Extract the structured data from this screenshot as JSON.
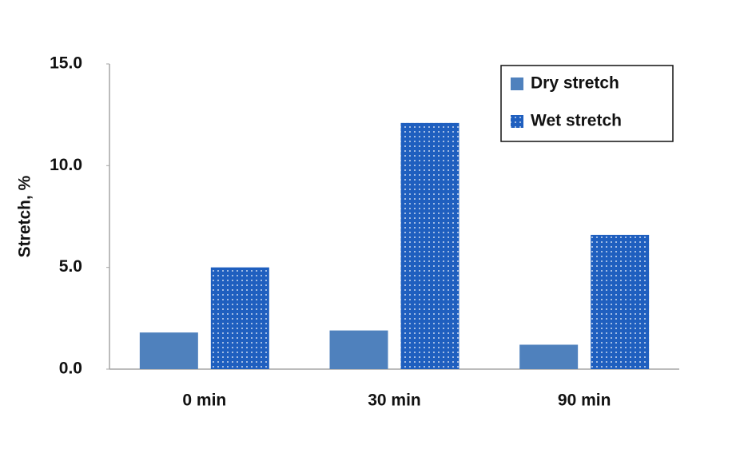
{
  "chart_data": {
    "type": "bar",
    "y_label": "Stretch, %",
    "categories": [
      "0 min",
      "30 min",
      "90 min"
    ],
    "series": [
      {
        "name": "Dry stretch",
        "color": "#4f81bd",
        "values": [
          1.8,
          1.9,
          1.2
        ]
      },
      {
        "name": "Wet stretch",
        "color": "#1f5fbf",
        "pattern": "dots",
        "values": [
          5.0,
          12.1,
          6.6
        ]
      }
    ],
    "ylim": [
      0,
      15
    ],
    "yticks": [
      {
        "value": 0,
        "label": "0.0"
      },
      {
        "value": 5,
        "label": "5.0"
      },
      {
        "value": 10,
        "label": "10.0"
      },
      {
        "value": 15,
        "label": "15.0"
      }
    ],
    "grid": false,
    "legend": "top-right"
  }
}
